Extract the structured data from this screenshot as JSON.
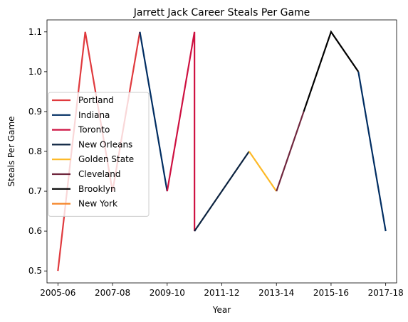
{
  "chart_data": {
    "type": "line",
    "title": "Jarrett Jack Career Steals Per Game",
    "xlabel": "Year",
    "ylabel": "Steals Per Game",
    "x_tick_labels": [
      "2005-06",
      "2007-08",
      "2009-10",
      "2011-12",
      "2013-14",
      "2015-16",
      "2017-18"
    ],
    "x_tick_values": [
      2005,
      2007,
      2009,
      2011,
      2013,
      2015,
      2017
    ],
    "y_ticks": [
      0.5,
      0.6,
      0.7,
      0.8,
      0.9,
      1.0,
      1.1
    ],
    "y_tick_labels": [
      "0.5",
      "0.6",
      "0.7",
      "0.8",
      "0.9",
      "1.0",
      "1.1"
    ],
    "xlim": [
      2004.6,
      2017.4
    ],
    "ylim": [
      0.47,
      1.13
    ],
    "grid": false,
    "legend_position": "center-left",
    "series": [
      {
        "name": "Portland",
        "color": "#E03A3E",
        "points": [
          [
            2005,
            0.5
          ],
          [
            2006,
            1.1
          ],
          [
            2007,
            0.7
          ],
          [
            2008,
            1.1
          ]
        ]
      },
      {
        "name": "Indiana",
        "color": "#002D62",
        "points": [
          [
            2008,
            1.1
          ],
          [
            2009,
            0.7
          ]
        ]
      },
      {
        "name": "Toronto",
        "color": "#CE1141",
        "points": [
          [
            2009,
            0.7
          ],
          [
            2010,
            1.1
          ],
          [
            2010,
            0.6
          ]
        ]
      },
      {
        "name": "New Orleans",
        "color": "#0C2340",
        "points": [
          [
            2010,
            0.6
          ],
          [
            2012,
            0.8
          ]
        ]
      },
      {
        "name": "Golden State",
        "color": "#FDB927",
        "points": [
          [
            2012,
            0.8
          ],
          [
            2013,
            0.7
          ]
        ]
      },
      {
        "name": "Cleveland",
        "color": "#6F263D",
        "points": [
          [
            2013,
            0.7
          ],
          [
            2014,
            0.9
          ]
        ]
      },
      {
        "name": "Brooklyn",
        "color": "#000000",
        "points": [
          [
            2014,
            0.9
          ],
          [
            2015,
            1.1
          ],
          [
            2016,
            1.0
          ]
        ]
      },
      {
        "name": "New York",
        "color": "#F58426",
        "points": []
      },
      {
        "name": "",
        "color": "#002D62",
        "points": [
          [
            2016,
            1.0
          ],
          [
            2017,
            0.6
          ]
        ]
      }
    ]
  }
}
